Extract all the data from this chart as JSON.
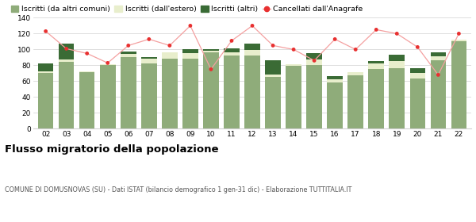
{
  "years": [
    "02",
    "03",
    "04",
    "05",
    "06",
    "07",
    "08",
    "09",
    "10",
    "11",
    "12",
    "13",
    "14",
    "15",
    "16",
    "17",
    "18",
    "19",
    "20",
    "21",
    "22"
  ],
  "iscritti_comuni": [
    70,
    84,
    71,
    80,
    90,
    82,
    88,
    88,
    96,
    92,
    92,
    65,
    79,
    80,
    58,
    67,
    75,
    76,
    63,
    86,
    110
  ],
  "iscritti_estero": [
    2,
    3,
    1,
    1,
    4,
    6,
    8,
    7,
    2,
    4,
    7,
    3,
    2,
    7,
    4,
    4,
    7,
    9,
    7,
    5,
    2
  ],
  "iscritti_altri": [
    10,
    20,
    0,
    0,
    3,
    2,
    0,
    5,
    2,
    5,
    8,
    18,
    0,
    8,
    4,
    0,
    3,
    8,
    6,
    5,
    0
  ],
  "cancellati": [
    123,
    101,
    95,
    83,
    105,
    113,
    105,
    130,
    75,
    111,
    130,
    105,
    100,
    86,
    113,
    100,
    125,
    120,
    103,
    68,
    120
  ],
  "color_comuni": "#8fac7a",
  "color_estero": "#e8eecc",
  "color_altri": "#3a6b35",
  "color_cancellati": "#e83030",
  "color_cancellati_line": "#f4a0a0",
  "ylim": [
    0,
    140
  ],
  "yticks": [
    0,
    20,
    40,
    60,
    80,
    100,
    120,
    140
  ],
  "title": "Flusso migratorio della popolazione",
  "subtitle": "COMUNE DI DOMUSNOVAS (SU) - Dati ISTAT (bilancio demografico 1 gen-31 dic) - Elaborazione TUTTITALIA.IT",
  "legend_labels": [
    "Iscritti (da altri comuni)",
    "Iscritti (dall'estero)",
    "Iscritti (altri)",
    "Cancellati dall'Anagrafe"
  ],
  "bg_color": "#ffffff",
  "grid_color": "#d0d0d0"
}
